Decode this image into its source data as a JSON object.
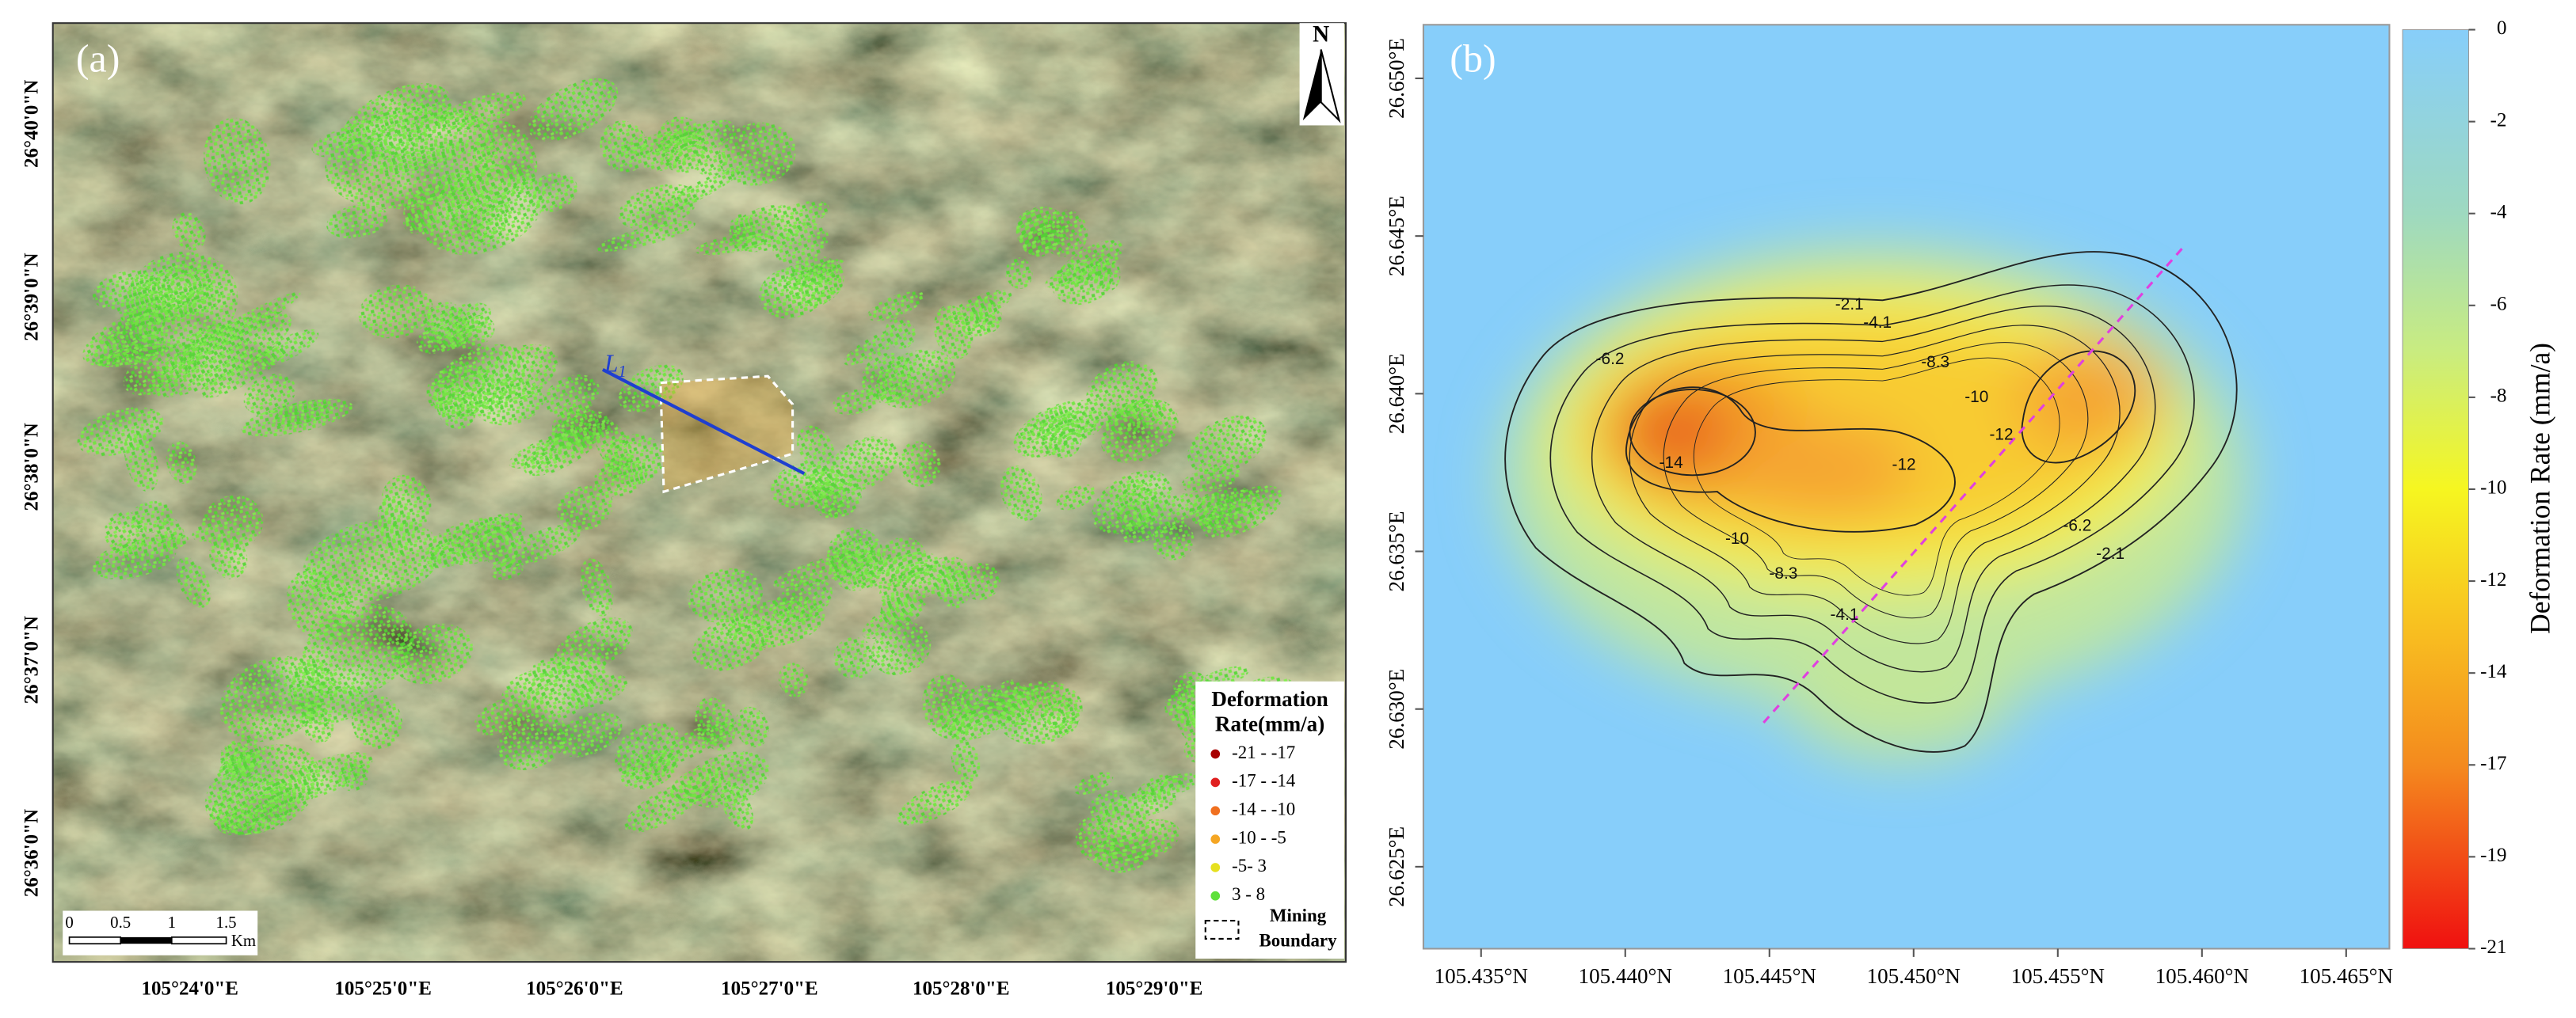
{
  "panel_a": {
    "label": "(a)",
    "north": "N",
    "route_label": "L",
    "route_label_sub": "1",
    "x_labels": [
      "105°24'0\"E",
      "105°25'0\"E",
      "105°26'0\"E",
      "105°27'0\"E",
      "105°28'0\"E",
      "105°29'0\"E"
    ],
    "y_labels": [
      "26°40'0\"N",
      "26°39'0\"N",
      "26°38'0\"N",
      "26°37'0\"N",
      "26°36'0\"N"
    ],
    "legend": {
      "title_lines": [
        "Deformation",
        "Rate(mm/a)"
      ],
      "entries": [
        {
          "label": "-21 - -17",
          "color": "#a80000"
        },
        {
          "label": "-17 - -14",
          "color": "#e02020"
        },
        {
          "label": "-14 - -10",
          "color": "#f07020"
        },
        {
          "label": "-10 - -5",
          "color": "#f5a623"
        },
        {
          "label": "-5- 3",
          "color": "#e6e020"
        },
        {
          "label": "3 - 8",
          "color": "#5ee03a"
        }
      ],
      "boundary_lines": [
        "Mining",
        "Boundary"
      ]
    },
    "scale_bar": {
      "labels": [
        "0",
        "0.5",
        "1",
        "1.5"
      ],
      "unit": "Km"
    }
  },
  "panel_b": {
    "label": "(b)",
    "xlim": [
      105.433,
      105.4665
    ],
    "ylim": [
      26.6224,
      26.6517
    ],
    "xticks": [
      {
        "value": 105.435,
        "label": "105.435°N"
      },
      {
        "value": 105.44,
        "label": "105.440°N"
      },
      {
        "value": 105.445,
        "label": "105.445°N"
      },
      {
        "value": 105.45,
        "label": "105.450°N"
      },
      {
        "value": 105.455,
        "label": "105.455°N"
      },
      {
        "value": 105.46,
        "label": "105.460°N"
      },
      {
        "value": 105.465,
        "label": "105.465°N"
      }
    ],
    "yticks": [
      {
        "value": 26.625,
        "label": "26.625°E"
      },
      {
        "value": 26.63,
        "label": "26.630°E"
      },
      {
        "value": 26.635,
        "label": "26.635°E"
      },
      {
        "value": 26.64,
        "label": "26.640°E"
      },
      {
        "value": 26.645,
        "label": "26.645°E"
      },
      {
        "value": 26.65,
        "label": "26.650°E"
      }
    ],
    "colorbar": {
      "label": "Deformation Rate  (mm/a)",
      "ticks": [
        0,
        -2,
        -4,
        -6,
        -8,
        -10,
        -12,
        -14,
        -17,
        -19,
        -21
      ]
    },
    "contour_labels": [
      -2.1,
      -4.1,
      -6.2,
      -8.3,
      -10,
      -14,
      -12,
      -12,
      -10,
      -6.2,
      -8.3,
      -2.1,
      -4.1
    ]
  }
}
